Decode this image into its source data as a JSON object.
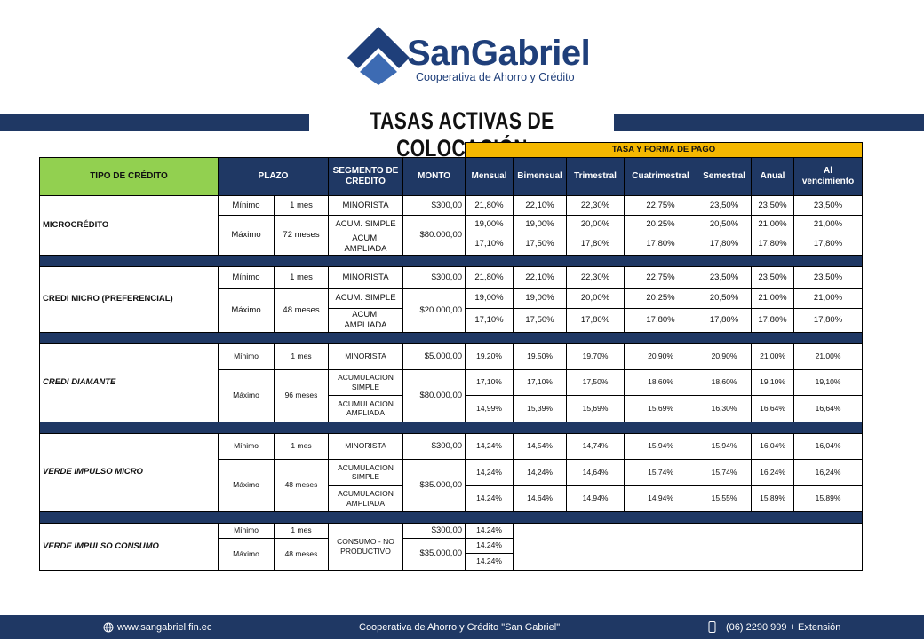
{
  "header": {
    "brand": "SanGabriel",
    "tagline": "Cooperativa de Ahorro y Crédito",
    "title": "TASAS ACTIVAS DE COLOCACIÓN"
  },
  "table": {
    "group_header": "TASA Y FORMA DE PAGO",
    "columns": [
      "TIPO DE CRÉDITO",
      "PLAZO",
      "SEGMENTO DE CREDITO",
      "MONTO",
      "Mensual",
      "Bimensual",
      "Trimestral",
      "Cuatrimestral",
      "Semestral",
      "Anual",
      "Al vencimiento"
    ],
    "sections": [
      {
        "name": "MICROCRÉDITO",
        "rows": [
          {
            "plazo_label": "Mínimo",
            "plazo": "1 mes",
            "segment": "MINORISTA",
            "monto": "$300,00",
            "rates": [
              "21,80%",
              "22,10%",
              "22,30%",
              "22,75%",
              "23,50%",
              "23,50%",
              "23,50%"
            ]
          },
          {
            "plazo_label": "Máximo",
            "plazo": "72 meses",
            "segment": "ACUM. SIMPLE",
            "monto": "$80.000,00",
            "rates": [
              "19,00%",
              "19,00%",
              "20,00%",
              "20,25%",
              "20,50%",
              "21,00%",
              "21,00%"
            ]
          },
          {
            "segment": "ACUM. AMPLIADA",
            "rates": [
              "17,10%",
              "17,50%",
              "17,80%",
              "17,80%",
              "17,80%",
              "17,80%",
              "17,80%"
            ]
          }
        ]
      },
      {
        "name": "CREDI MICRO (PREFERENCIAL)",
        "rows": [
          {
            "plazo_label": "Mínimo",
            "plazo": "1 mes",
            "segment": "MINORISTA",
            "monto": "$300,00",
            "rates": [
              "21,80%",
              "22,10%",
              "22,30%",
              "22,75%",
              "23,50%",
              "23,50%",
              "23,50%"
            ]
          },
          {
            "plazo_label": "Máximo",
            "plazo": "48 meses",
            "segment": "ACUM. SIMPLE",
            "monto": "$20.000,00",
            "rates": [
              "19,00%",
              "19,00%",
              "20,00%",
              "20,25%",
              "20,50%",
              "21,00%",
              "21,00%"
            ]
          },
          {
            "segment": "ACUM. AMPLIADA",
            "rates": [
              "17,10%",
              "17,50%",
              "17,80%",
              "17,80%",
              "17,80%",
              "17,80%",
              "17,80%"
            ]
          }
        ]
      },
      {
        "name": "CREDI DIAMANTE",
        "rows": [
          {
            "plazo_label": "Mínimo",
            "plazo": "1 mes",
            "segment": "MINORISTA",
            "monto": "$5.000,00",
            "rates": [
              "19,20%",
              "19,50%",
              "19,70%",
              "20,90%",
              "20,90%",
              "21,00%",
              "21,00%"
            ]
          },
          {
            "plazo_label": "Máximo",
            "plazo": "96 meses",
            "segment": "ACUMULACION SIMPLE",
            "monto": "$80.000,00",
            "rates": [
              "17,10%",
              "17,10%",
              "17,50%",
              "18,60%",
              "18,60%",
              "19,10%",
              "19,10%"
            ]
          },
          {
            "segment": "ACUMULACION AMPLIADA",
            "rates": [
              "14,99%",
              "15,39%",
              "15,69%",
              "15,69%",
              "16,30%",
              "16,64%",
              "16,64%"
            ]
          }
        ]
      },
      {
        "name": "VERDE IMPULSO MICRO",
        "rows": [
          {
            "plazo_label": "Mínimo",
            "plazo": "1 mes",
            "segment": "MINORISTA",
            "monto": "$300,00",
            "rates": [
              "14,24%",
              "14,54%",
              "14,74%",
              "15,94%",
              "15,94%",
              "16,04%",
              "16,04%"
            ]
          },
          {
            "plazo_label": "Máximo",
            "plazo": "48 meses",
            "segment": "ACUMULACION SIMPLE",
            "monto": "$35.000,00",
            "rates": [
              "14,24%",
              "14,24%",
              "14,64%",
              "15,74%",
              "15,74%",
              "16,24%",
              "16,24%"
            ]
          },
          {
            "segment": "ACUMULACION AMPLIADA",
            "rates": [
              "14,24%",
              "14,64%",
              "14,94%",
              "14,94%",
              "15,55%",
              "15,89%",
              "15,89%"
            ]
          }
        ]
      },
      {
        "name": "VERDE IMPULSO CONSUMO",
        "rows": [
          {
            "plazo_label": "Mínimo",
            "plazo": "1 mes",
            "segment": "CONSUMO - NO PRODUCTIVO",
            "monto": "$300,00",
            "rates": [
              "14,24%"
            ]
          },
          {
            "plazo_label": "Máximo",
            "plazo": "48 meses",
            "monto": "$35.000,00",
            "rates": [
              "14,24%"
            ]
          },
          {
            "rates": [
              "14,24%"
            ]
          }
        ]
      }
    ]
  },
  "footer": {
    "website": "www.sangabriel.fin.ec",
    "organization": "Cooperativa de Ahorro y Crédito \"San Gabriel\"",
    "phone": "(06) 2290 999 + Extensión"
  }
}
